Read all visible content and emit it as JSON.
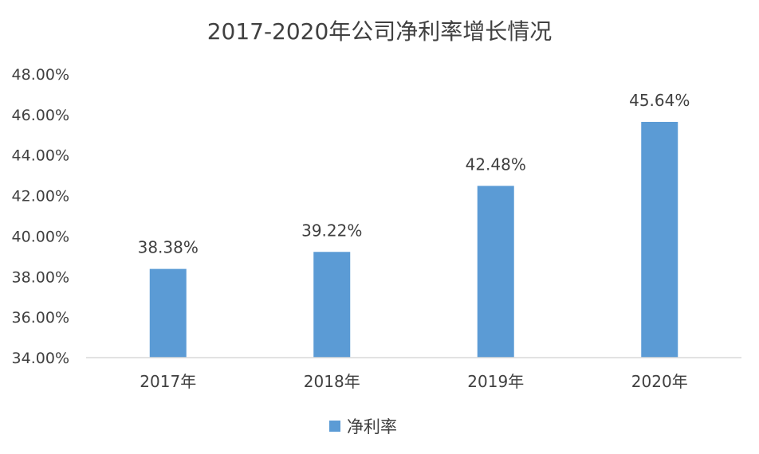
{
  "chart_data": {
    "type": "bar",
    "title": "2017-2020年公司净利率增长情况",
    "categories": [
      "2017年",
      "2018年",
      "2019年",
      "2020年"
    ],
    "series": [
      {
        "name": "净利率",
        "values": [
          38.38,
          39.22,
          42.48,
          45.64
        ],
        "data_labels": [
          "38.38%",
          "39.22%",
          "42.48%",
          "45.64%"
        ]
      }
    ],
    "y_ticks": [
      "34.00%",
      "36.00%",
      "38.00%",
      "40.00%",
      "42.00%",
      "44.00%",
      "46.00%",
      "48.00%"
    ],
    "ylim": [
      34,
      48
    ],
    "xlabel": "",
    "ylabel": "",
    "grid": false,
    "legend_position": "bottom",
    "colors": {
      "bar": "#5b9bd5",
      "axis": "#d9d9d9",
      "text": "#404040"
    }
  }
}
